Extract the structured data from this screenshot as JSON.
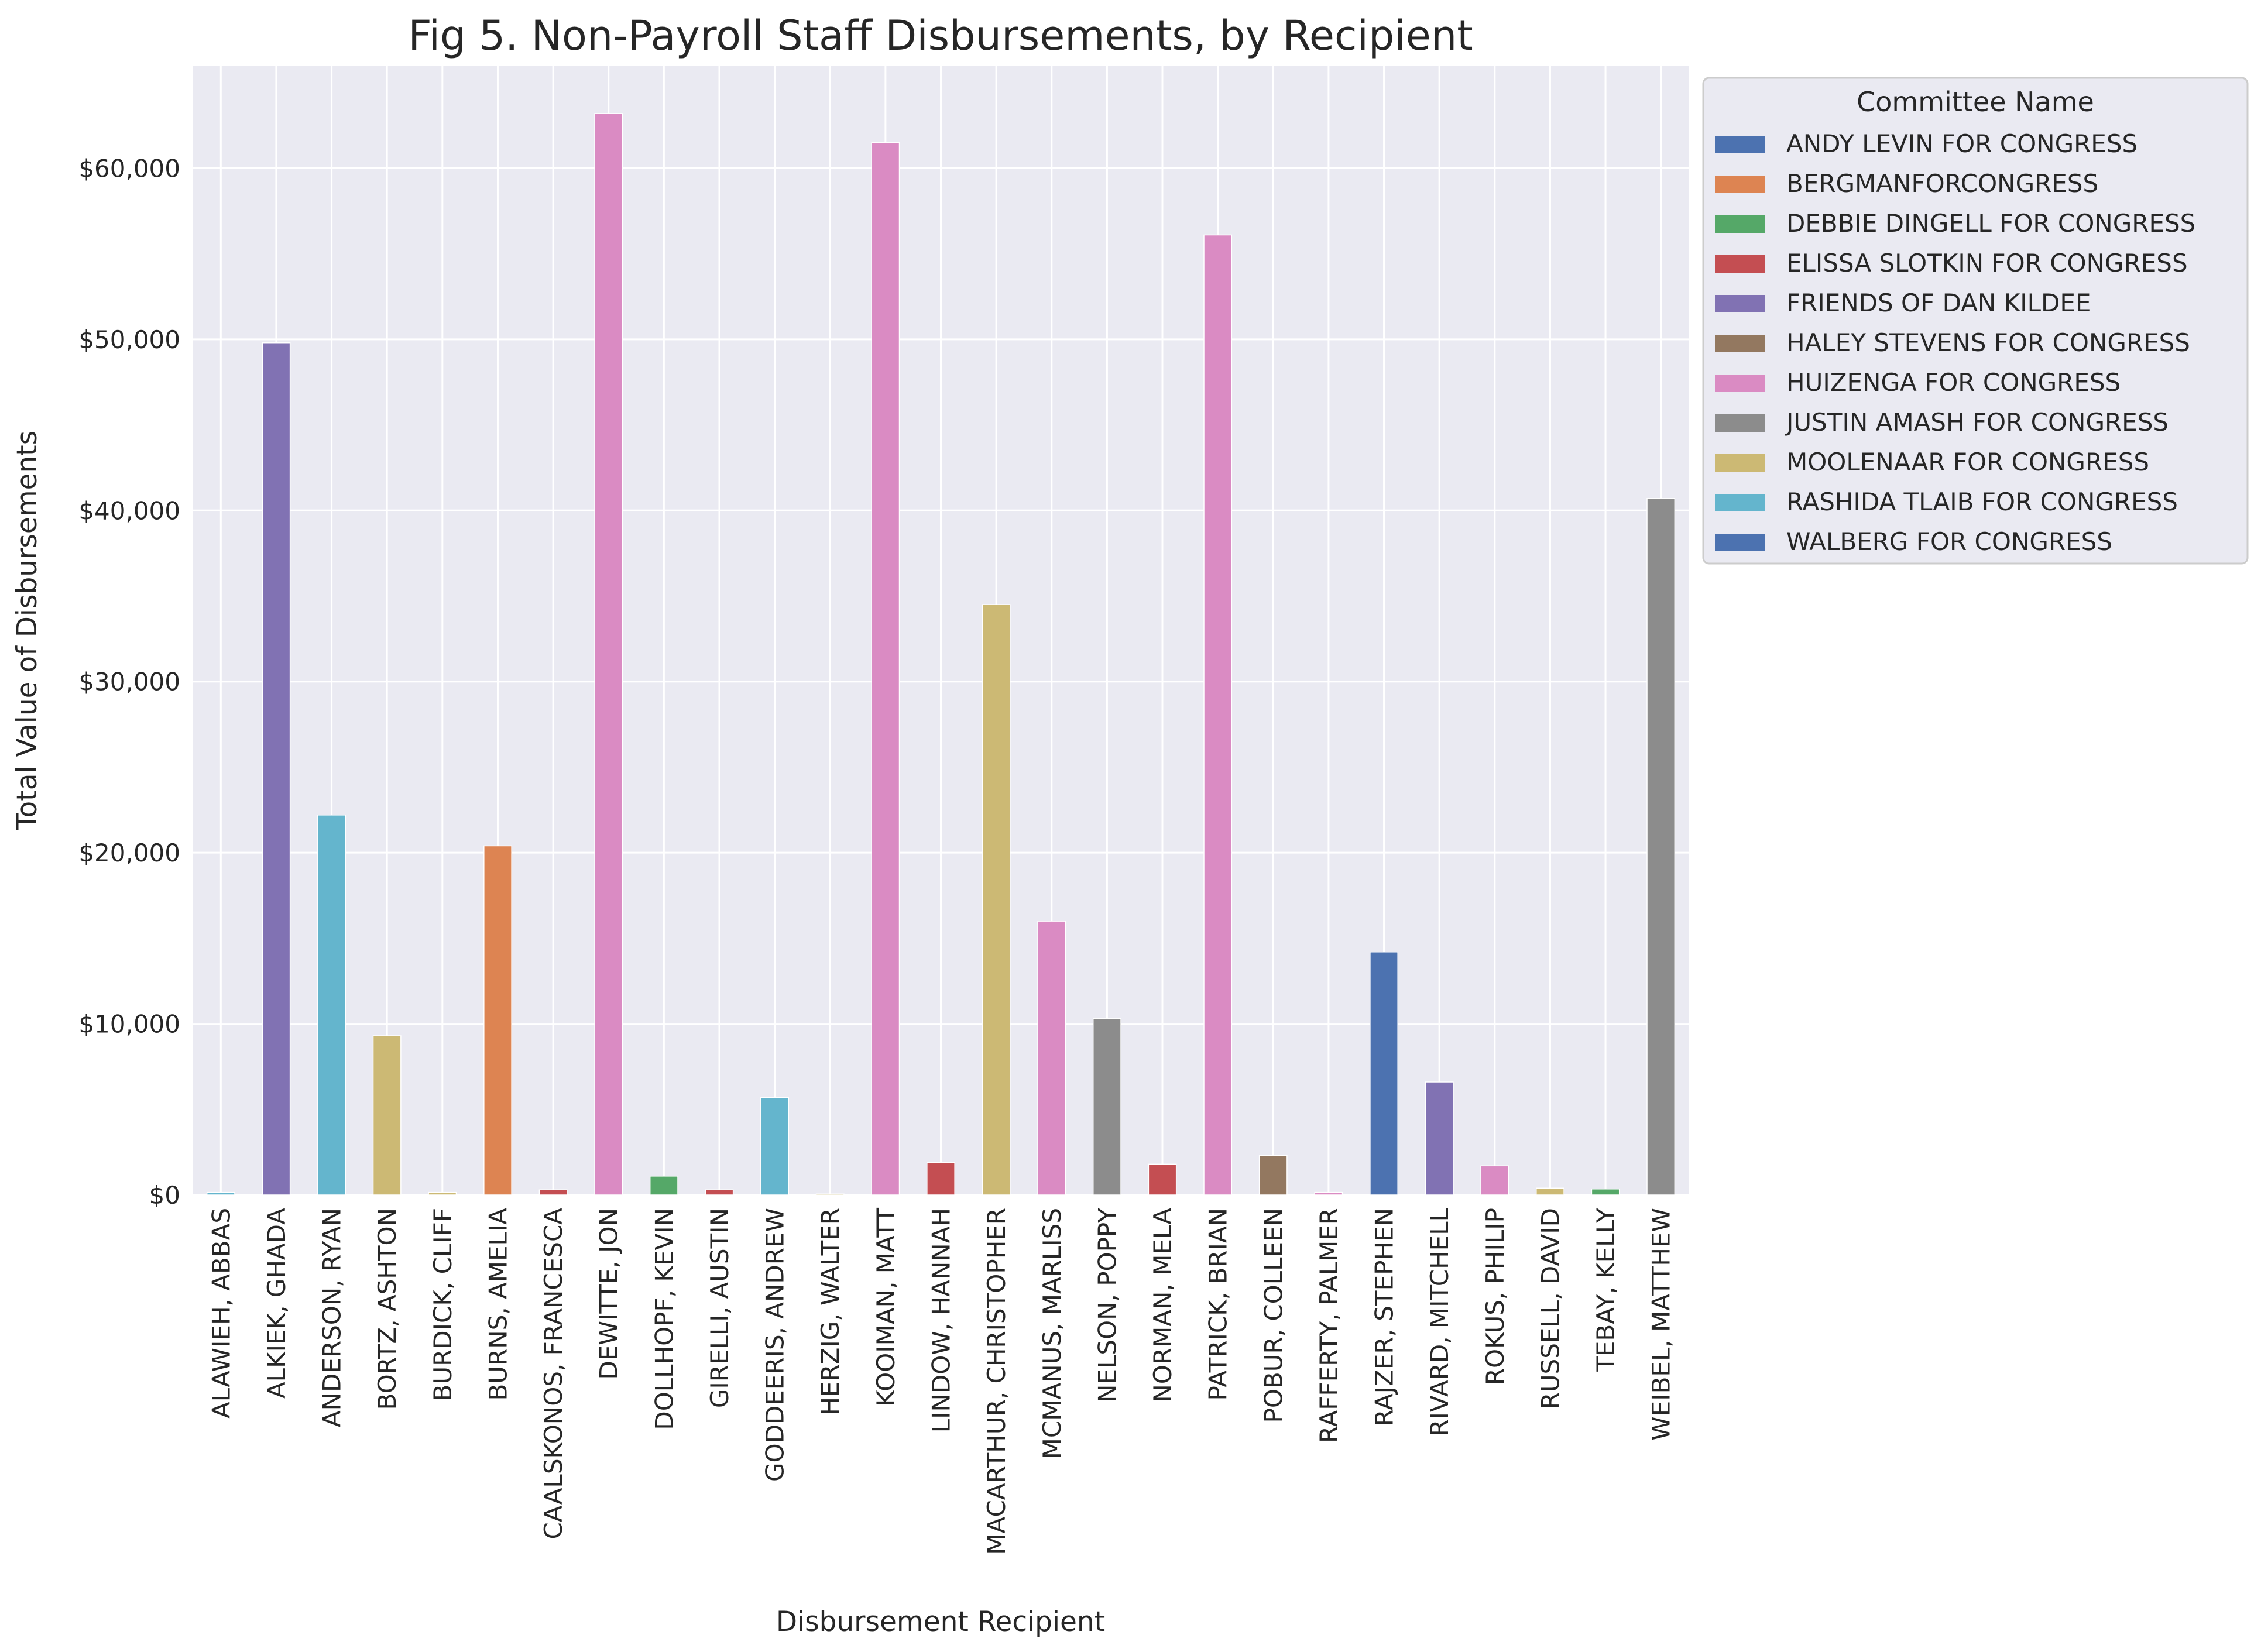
{
  "chart_data": {
    "type": "bar",
    "title": "Fig 5. Non-Payroll Staff Disbursements, by Recipient",
    "xlabel": "Disbursement Recipient",
    "ylabel": "Total Value of Disbursements",
    "ylim": [
      0,
      66000
    ],
    "yticks": [
      0,
      10000,
      20000,
      30000,
      40000,
      50000,
      60000
    ],
    "ytick_labels": [
      "$0",
      "$10,000",
      "$20,000",
      "$30,000",
      "$40,000",
      "$50,000",
      "$60,000"
    ],
    "grid": true,
    "legend_title": "Committee Name",
    "legend_position": "outside-top-right",
    "committees": [
      {
        "name": "ANDY LEVIN FOR CONGRESS",
        "color": "#4c72b0"
      },
      {
        "name": "BERGMANFORCONGRESS",
        "color": "#dd8452"
      },
      {
        "name": "DEBBIE DINGELL FOR CONGRESS",
        "color": "#55a868"
      },
      {
        "name": "ELISSA SLOTKIN FOR CONGRESS",
        "color": "#c44e52"
      },
      {
        "name": "FRIENDS OF DAN KILDEE",
        "color": "#8172b3"
      },
      {
        "name": "HALEY STEVENS FOR CONGRESS",
        "color": "#937860"
      },
      {
        "name": "HUIZENGA FOR CONGRESS",
        "color": "#da8bc3"
      },
      {
        "name": "JUSTIN AMASH FOR CONGRESS",
        "color": "#8c8c8c"
      },
      {
        "name": "MOOLENAAR FOR CONGRESS",
        "color": "#ccb974"
      },
      {
        "name": "RASHIDA TLAIB FOR CONGRESS",
        "color": "#64b5cd"
      },
      {
        "name": "WALBERG FOR CONGRESS",
        "color": "#4c72b0"
      }
    ],
    "categories": [
      "ALAWIEH, ABBAS",
      "ALKIEK, GHADA",
      "ANDERSON, RYAN",
      "BORTZ, ASHTON",
      "BURDICK, CLIFF",
      "BURNS, AMELIA",
      "CAALSKONOS, FRANCESCA",
      "DEWITTE, JON",
      "DOLLHOPF, KEVIN",
      "GIRELLI, AUSTIN",
      "GODDEERIS, ANDREW",
      "HERZIG, WALTER",
      "KOOIMAN, MATT",
      "LINDOW, HANNAH",
      "MACARTHUR, CHRISTOPHER",
      "MCMANUS, MARLISS",
      "NELSON, POPPY",
      "NORMAN, MELA",
      "PATRICK, BRIAN",
      "POBUR, COLLEEN",
      "RAFFERTY, PALMER",
      "RAJZER, STEPHEN",
      "RIVARD, MITCHELL",
      "ROKUS, PHILIP",
      "RUSSELL, DAVID",
      "TEBAY, KELLY",
      "WEIBEL, MATTHEW"
    ],
    "bars": [
      {
        "recipient": "ALAWIEH, ABBAS",
        "committee": "RASHIDA TLAIB FOR CONGRESS",
        "value": 150
      },
      {
        "recipient": "ALKIEK, GHADA",
        "committee": "FRIENDS OF DAN KILDEE",
        "value": 49800
      },
      {
        "recipient": "ANDERSON, RYAN",
        "committee": "RASHIDA TLAIB FOR CONGRESS",
        "value": 22200
      },
      {
        "recipient": "BORTZ, ASHTON",
        "committee": "MOOLENAAR FOR CONGRESS",
        "value": 9300
      },
      {
        "recipient": "BURDICK, CLIFF",
        "committee": "MOOLENAAR FOR CONGRESS",
        "value": 150
      },
      {
        "recipient": "BURNS, AMELIA",
        "committee": "BERGMANFORCONGRESS",
        "value": 20400
      },
      {
        "recipient": "CAALSKONOS, FRANCESCA",
        "committee": "ELISSA SLOTKIN FOR CONGRESS",
        "value": 300
      },
      {
        "recipient": "DEWITTE, JON",
        "committee": "HUIZENGA FOR CONGRESS",
        "value": 63200
      },
      {
        "recipient": "DOLLHOPF, KEVIN",
        "committee": "DEBBIE DINGELL FOR CONGRESS",
        "value": 1100
      },
      {
        "recipient": "GIRELLI, AUSTIN",
        "committee": "ELISSA SLOTKIN FOR CONGRESS",
        "value": 300
      },
      {
        "recipient": "GODDEERIS, ANDREW",
        "committee": "RASHIDA TLAIB FOR CONGRESS",
        "value": 5700
      },
      {
        "recipient": "HERZIG, WALTER",
        "committee": "MOOLENAAR FOR CONGRESS",
        "value": 60
      },
      {
        "recipient": "KOOIMAN, MATT",
        "committee": "HUIZENGA FOR CONGRESS",
        "value": 61500
      },
      {
        "recipient": "LINDOW, HANNAH",
        "committee": "ELISSA SLOTKIN FOR CONGRESS",
        "value": 1900
      },
      {
        "recipient": "MACARTHUR, CHRISTOPHER",
        "committee": "MOOLENAAR FOR CONGRESS",
        "value": 34500
      },
      {
        "recipient": "MCMANUS, MARLISS",
        "committee": "HUIZENGA FOR CONGRESS",
        "value": 16000
      },
      {
        "recipient": "NELSON, POPPY",
        "committee": "JUSTIN AMASH FOR CONGRESS",
        "value": 10300
      },
      {
        "recipient": "NORMAN, MELA",
        "committee": "ELISSA SLOTKIN FOR CONGRESS",
        "value": 1800
      },
      {
        "recipient": "PATRICK, BRIAN",
        "committee": "HUIZENGA FOR CONGRESS",
        "value": 56100
      },
      {
        "recipient": "POBUR, COLLEEN",
        "committee": "HALEY STEVENS FOR CONGRESS",
        "value": 2300
      },
      {
        "recipient": "RAFFERTY, PALMER",
        "committee": "HUIZENGA FOR CONGRESS",
        "value": 150
      },
      {
        "recipient": "RAJZER, STEPHEN",
        "committee": "WALBERG FOR CONGRESS",
        "value": 14200
      },
      {
        "recipient": "RIVARD, MITCHELL",
        "committee": "FRIENDS OF DAN KILDEE",
        "value": 6600
      },
      {
        "recipient": "ROKUS, PHILIP",
        "committee": "HUIZENGA FOR CONGRESS",
        "value": 1700
      },
      {
        "recipient": "RUSSELL, DAVID",
        "committee": "MOOLENAAR FOR CONGRESS",
        "value": 400
      },
      {
        "recipient": "TEBAY, KELLY",
        "committee": "DEBBIE DINGELL FOR CONGRESS",
        "value": 350
      },
      {
        "recipient": "WEIBEL, MATTHEW",
        "committee": "JUSTIN AMASH FOR CONGRESS",
        "value": 40700
      }
    ]
  }
}
